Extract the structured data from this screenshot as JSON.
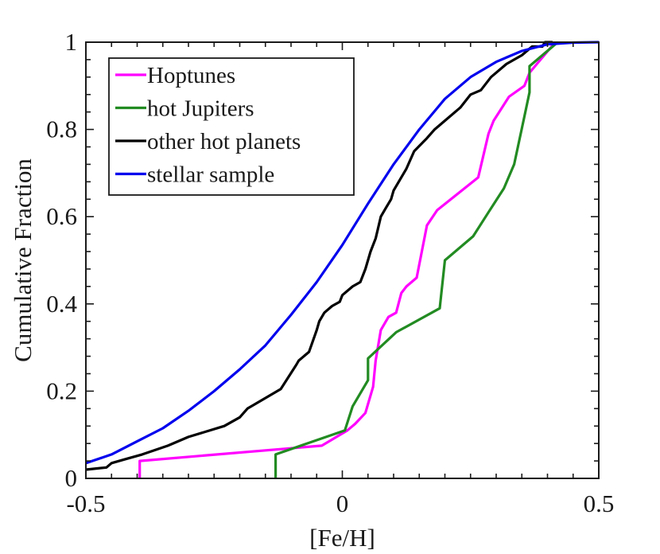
{
  "chart_data": {
    "type": "line",
    "subtype": "empirical-cdf",
    "title": "",
    "xlabel": "[Fe/H]",
    "ylabel": "Cumulative Fraction",
    "xlim": [
      -0.5,
      0.5
    ],
    "ylim": [
      0,
      1
    ],
    "x_ticks": [
      -0.5,
      0,
      0.5
    ],
    "x_tick_labels": [
      "-0.5",
      "0",
      "0.5"
    ],
    "y_ticks": [
      0,
      0.2,
      0.4,
      0.6,
      0.8,
      1
    ],
    "y_tick_labels": [
      "0",
      "0.2",
      "0.4",
      "0.6",
      "0.8",
      "1"
    ],
    "grid": false,
    "legend_position": "top-left",
    "series": [
      {
        "name": "Hoptunes",
        "color": "#ff00ff",
        "x": [
          -0.395,
          -0.395,
          -0.04,
          0.01,
          0.025,
          0.045,
          0.06,
          0.065,
          0.075,
          0.09,
          0.105,
          0.115,
          0.125,
          0.145,
          0.165,
          0.185,
          0.265,
          0.285,
          0.295,
          0.325,
          0.355,
          0.365,
          0.415
        ],
        "y": [
          0,
          0.04,
          0.075,
          0.11,
          0.125,
          0.15,
          0.21,
          0.27,
          0.34,
          0.37,
          0.38,
          0.425,
          0.44,
          0.46,
          0.58,
          0.615,
          0.69,
          0.79,
          0.82,
          0.875,
          0.9,
          0.93,
          1.0
        ]
      },
      {
        "name": "hot Jupiters",
        "color": "#228b22",
        "x": [
          -0.13,
          -0.13,
          0.005,
          0.02,
          0.05,
          0.05,
          0.105,
          0.19,
          0.2,
          0.255,
          0.285,
          0.315,
          0.335,
          0.355,
          0.365,
          0.365,
          0.42
        ],
        "y": [
          0,
          0.055,
          0.11,
          0.165,
          0.225,
          0.275,
          0.335,
          0.39,
          0.5,
          0.555,
          0.61,
          0.665,
          0.72,
          0.83,
          0.885,
          0.945,
          1.0
        ]
      },
      {
        "name": "other hot planets",
        "color": "#000000",
        "x": [
          -0.5,
          -0.46,
          -0.45,
          -0.42,
          -0.39,
          -0.34,
          -0.3,
          -0.23,
          -0.2,
          -0.185,
          -0.12,
          -0.09,
          -0.085,
          -0.065,
          -0.05,
          -0.045,
          -0.035,
          -0.02,
          -0.005,
          0.0,
          0.02,
          0.035,
          0.045,
          0.055,
          0.065,
          0.075,
          0.085,
          0.095,
          0.1,
          0.11,
          0.125,
          0.14,
          0.165,
          0.18,
          0.2,
          0.23,
          0.25,
          0.27,
          0.29,
          0.32,
          0.35,
          0.37,
          0.39,
          0.395,
          0.41
        ],
        "y": [
          0.02,
          0.025,
          0.035,
          0.045,
          0.055,
          0.075,
          0.095,
          0.12,
          0.14,
          0.16,
          0.205,
          0.26,
          0.27,
          0.29,
          0.34,
          0.36,
          0.38,
          0.395,
          0.405,
          0.42,
          0.44,
          0.45,
          0.48,
          0.52,
          0.55,
          0.6,
          0.62,
          0.64,
          0.66,
          0.68,
          0.71,
          0.75,
          0.78,
          0.8,
          0.82,
          0.85,
          0.88,
          0.89,
          0.92,
          0.95,
          0.97,
          0.99,
          0.99,
          1.0,
          1.0
        ]
      },
      {
        "name": "stellar sample",
        "color": "#0000ee",
        "x": [
          -0.5,
          -0.45,
          -0.4,
          -0.35,
          -0.3,
          -0.25,
          -0.2,
          -0.15,
          -0.1,
          -0.05,
          0.0,
          0.05,
          0.1,
          0.15,
          0.2,
          0.25,
          0.3,
          0.35,
          0.4,
          0.45,
          0.5
        ],
        "y": [
          0.035,
          0.055,
          0.085,
          0.115,
          0.155,
          0.2,
          0.25,
          0.305,
          0.375,
          0.45,
          0.535,
          0.63,
          0.72,
          0.8,
          0.87,
          0.92,
          0.955,
          0.98,
          0.995,
          0.999,
          1.0
        ]
      }
    ]
  }
}
